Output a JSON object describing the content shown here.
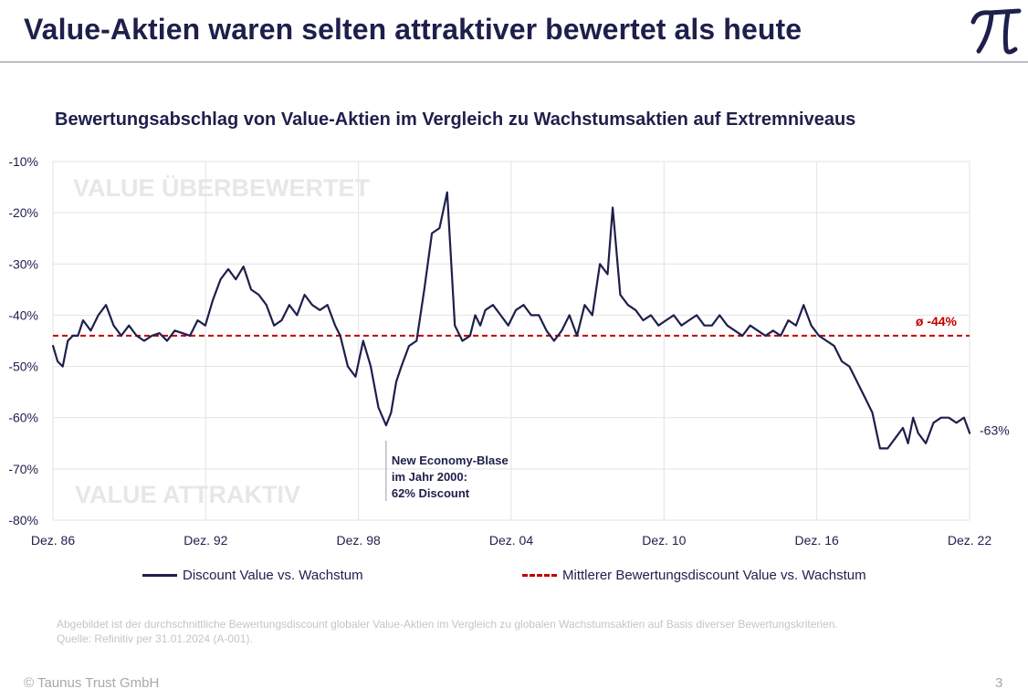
{
  "page": {
    "title": "Value-Aktien waren selten attraktiver bewertet als heute",
    "logo_name": "pi-logo",
    "footnote_line1": "Abgebildet ist der durchschnittliche Bewertungsdiscount globaler Value-Aktien im Vergleich zu globalen Wachstumsaktien auf Basis diverser Bewertungskriterien.",
    "footnote_line2": "Quelle: Refinitiv per 31.01.2024 (A-001).",
    "copyright": "© Taunus Trust GmbH",
    "page_number": "3",
    "colors": {
      "navy": "#1e1f4b",
      "red": "#c00000",
      "grid": "#e3e3e6",
      "zone_text": "#e7e7ea"
    }
  },
  "chart_data": {
    "type": "line",
    "title": "Bewertungsabschlag von Value-Aktien im Vergleich zu Wachstumsaktien auf Extremniveaus",
    "xlabel": "",
    "ylabel": "",
    "x_range": [
      1986.917,
      2022.917
    ],
    "ylim": [
      -80,
      -10
    ],
    "y_ticks": [
      -10,
      -20,
      -30,
      -40,
      -50,
      -60,
      -70,
      -80
    ],
    "y_tick_labels": [
      "-10%",
      "-20%",
      "-30%",
      "-40%",
      "-50%",
      "-60%",
      "-70%",
      "-80%"
    ],
    "x_ticks": [
      1986.917,
      1992.917,
      1998.917,
      2004.917,
      2010.917,
      2016.917,
      2022.917
    ],
    "x_tick_labels": [
      "Dez. 86",
      "Dez. 92",
      "Dez. 98",
      "Dez. 04",
      "Dez. 10",
      "Dez. 16",
      "Dez. 22"
    ],
    "grid": true,
    "legend_position": "bottom",
    "zone_labels": {
      "top": "VALUE ÜBERBEWERTET",
      "bottom": "VALUE ATTRAKTIV"
    },
    "series": [
      {
        "name": "Discount Value vs. Wachstum",
        "color": "#1e1f4b",
        "style": "solid",
        "x": [
          1986.92,
          1987.1,
          1987.3,
          1987.5,
          1987.7,
          1987.9,
          1988.1,
          1988.4,
          1988.7,
          1989.0,
          1989.3,
          1989.6,
          1989.9,
          1990.2,
          1990.5,
          1990.8,
          1991.1,
          1991.4,
          1991.7,
          1992.0,
          1992.3,
          1992.6,
          1992.9,
          1993.2,
          1993.5,
          1993.8,
          1994.1,
          1994.4,
          1994.7,
          1995.0,
          1995.3,
          1995.6,
          1995.9,
          1996.2,
          1996.5,
          1996.8,
          1997.1,
          1997.4,
          1997.7,
          1998.0,
          1998.2,
          1998.5,
          1998.8,
          1999.1,
          1999.4,
          1999.7,
          2000.0,
          2000.2,
          2000.4,
          2000.6,
          2000.9,
          2001.2,
          2001.5,
          2001.8,
          2002.1,
          2002.4,
          2002.7,
          2003.0,
          2003.3,
          2003.5,
          2003.7,
          2003.9,
          2004.2,
          2004.5,
          2004.8,
          2005.1,
          2005.4,
          2005.7,
          2006.0,
          2006.3,
          2006.6,
          2006.9,
          2007.2,
          2007.5,
          2007.8,
          2008.1,
          2008.4,
          2008.7,
          2008.9,
          2009.2,
          2009.5,
          2009.8,
          2010.1,
          2010.4,
          2010.7,
          2011.0,
          2011.3,
          2011.6,
          2011.9,
          2012.2,
          2012.5,
          2012.8,
          2013.1,
          2013.4,
          2013.7,
          2014.0,
          2014.3,
          2014.6,
          2014.9,
          2015.2,
          2015.5,
          2015.8,
          2016.1,
          2016.4,
          2016.7,
          2017.0,
          2017.3,
          2017.6,
          2017.9,
          2018.2,
          2018.5,
          2018.8,
          2019.1,
          2019.4,
          2019.7,
          2020.0,
          2020.3,
          2020.5,
          2020.7,
          2020.9,
          2021.2,
          2021.5,
          2021.8,
          2022.1,
          2022.4,
          2022.7,
          2022.92
        ],
        "y": [
          -46,
          -49,
          -50,
          -45,
          -44,
          -44,
          -41,
          -43,
          -40,
          -38,
          -42,
          -44,
          -42,
          -44,
          -45,
          -44,
          -43.5,
          -45,
          -43,
          -43.5,
          -44,
          -41,
          -42,
          -37,
          -33,
          -31,
          -33,
          -30.5,
          -35,
          -36,
          -38,
          -42,
          -41,
          -38,
          -40,
          -36,
          -38,
          -39,
          -38,
          -42,
          -44,
          -50,
          -52,
          -45,
          -50,
          -58,
          -61.5,
          -59,
          -53,
          -50,
          -46,
          -45,
          -35,
          -24,
          -23,
          -16,
          -42,
          -45,
          -44,
          -40,
          -42,
          -39,
          -38,
          -40,
          -42,
          -39,
          -38,
          -40,
          -40,
          -43,
          -45,
          -43,
          -40,
          -44,
          -38,
          -40,
          -30,
          -32,
          -19,
          -36,
          -38,
          -39,
          -41,
          -40,
          -42,
          -41,
          -40,
          -42,
          -41,
          -40,
          -42,
          -42,
          -40,
          -42,
          -43,
          -44,
          -42,
          -43,
          -44,
          -43,
          -44,
          -41,
          -42,
          -38,
          -42,
          -44,
          -45,
          -46,
          -49,
          -50,
          -53,
          -56,
          -59,
          -66,
          -66,
          -64,
          -62,
          -65,
          -60,
          -63,
          -65,
          -61,
          -60,
          -60,
          -61,
          -60,
          -63
        ]
      },
      {
        "name": "Mittlerer Bewertungsdiscount Value vs. Wachstum",
        "color": "#c00000",
        "style": "dashed",
        "value": -44
      }
    ],
    "annotations": {
      "mean_label": "ø -44%",
      "last_value_label": "-63%",
      "bubble_line1": "New Economy-Blase",
      "bubble_line2": "im Jahr 2000:",
      "bubble_line3": "62% Discount",
      "bubble_x": 2000.0,
      "bubble_y": -62
    }
  }
}
